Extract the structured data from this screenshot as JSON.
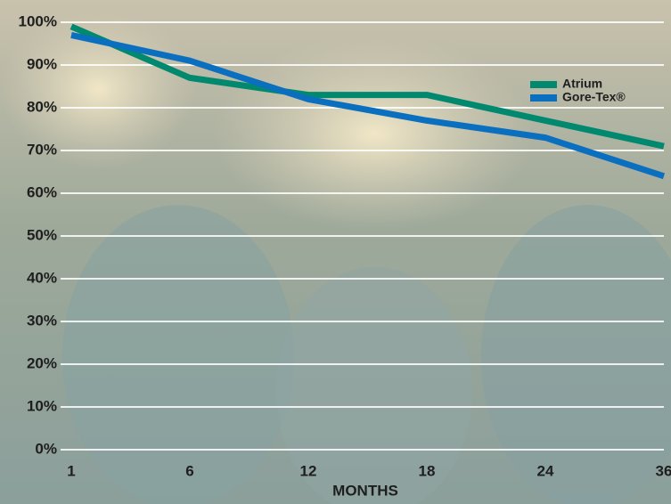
{
  "chart_data": {
    "type": "line",
    "x_label": "MONTHS",
    "categories": [
      "1",
      "6",
      "12",
      "18",
      "24",
      "36"
    ],
    "series": [
      {
        "name": "Atrium",
        "color": "#00896f",
        "values": [
          99,
          87,
          83,
          83,
          77,
          71
        ]
      },
      {
        "name": "Gore-Tex®",
        "color": "#0a6fbf",
        "values": [
          97,
          91,
          82,
          77,
          73,
          64
        ]
      }
    ],
    "ylim": [
      0,
      100
    ],
    "yticks": [
      {
        "value": 0,
        "label": "0%"
      },
      {
        "value": 10,
        "label": "10%"
      },
      {
        "value": 20,
        "label": "20%"
      },
      {
        "value": 30,
        "label": "30%"
      },
      {
        "value": 40,
        "label": "40%"
      },
      {
        "value": 50,
        "label": "50%"
      },
      {
        "value": 60,
        "label": "60%"
      },
      {
        "value": 70,
        "label": "70%"
      },
      {
        "value": 80,
        "label": "80%"
      },
      {
        "value": 90,
        "label": "90%"
      },
      {
        "value": 100,
        "label": "100%"
      }
    ],
    "grid": true,
    "legend": "upper right"
  }
}
